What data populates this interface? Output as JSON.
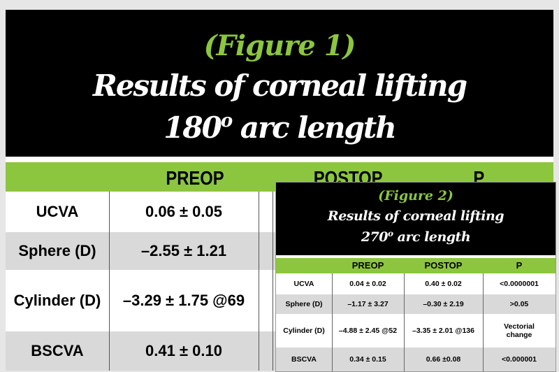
{
  "figure1": {
    "label": "(Figure 1)",
    "title_line1": "Results of corneal lifting",
    "title_line2_pre": "180",
    "title_line2_sup": "o",
    "title_line2_post": " arc length",
    "columns": [
      "PREOP",
      "POSTOP",
      "P"
    ],
    "rows": [
      {
        "label": "UCVA",
        "preop": "0.06 ± 0.05"
      },
      {
        "label": "Sphere (D)",
        "preop": "–2.55 ± 1.21"
      },
      {
        "label": "Cylinder (D)",
        "preop": "–3.29 ± 1.75 @69"
      },
      {
        "label": "BSCVA",
        "preop": "0.41 ± 0.10"
      }
    ]
  },
  "figure2": {
    "label": "(Figure 2)",
    "title_line1": "Results of corneal lifting",
    "title_line2_pre": "270",
    "title_line2_sup": "o",
    "title_line2_post": " arc length",
    "columns": [
      "PREOP",
      "POSTOP",
      "P"
    ],
    "rows": [
      {
        "label": "UCVA",
        "preop": "0.04 ± 0.02",
        "postop": "0.40 ± 0.02",
        "p": "<0.0000001"
      },
      {
        "label": "Sphere (D)",
        "preop": "–1.17 ± 3.27",
        "postop": "–0.30 ± 2.19",
        "p": ">0.05"
      },
      {
        "label": "Cylinder (D)",
        "preop": "–4.88 ± 2.45 @52",
        "postop": "–3.35 ± 2.01 @136",
        "p": "Vectorial change"
      },
      {
        "label": "BSCVA",
        "preop": "0.34 ± 0.15",
        "postop": "0.66 ±0.08",
        "p": "<0.000001"
      }
    ]
  },
  "colors": {
    "accent_green": "#8cc63e",
    "header_black": "#000000",
    "row_grey": "#d9d9da"
  }
}
